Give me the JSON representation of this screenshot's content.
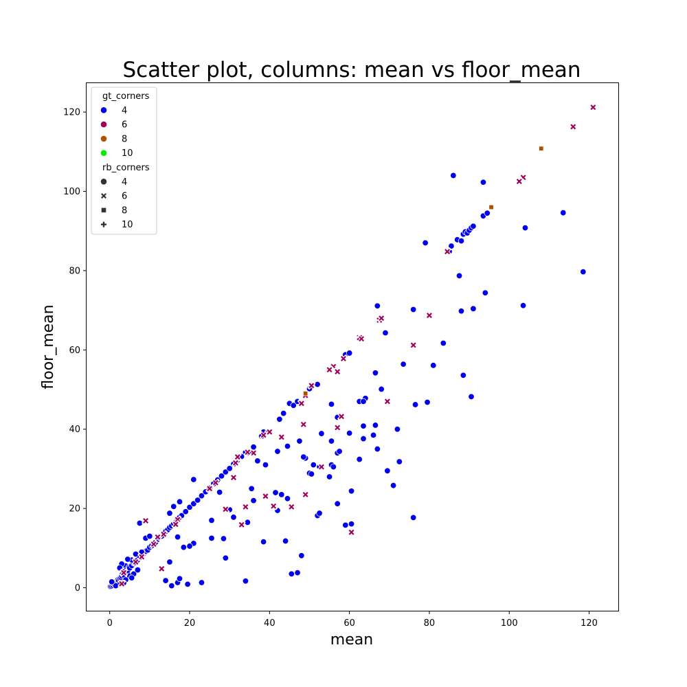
{
  "chart_data": {
    "type": "scatter",
    "title": "Scatter plot, columns: mean vs floor_mean",
    "xlabel": "mean",
    "ylabel": "floor_mean",
    "xlim": [
      -5.8,
      127.3
    ],
    "ylim": [
      -5.8,
      127.3
    ],
    "xticks": [
      0,
      20,
      40,
      60,
      80,
      100,
      120
    ],
    "yticks": [
      0,
      20,
      40,
      60,
      80,
      100,
      120
    ],
    "grid": false,
    "legend_position": "top-left",
    "hue": {
      "title": "gt_corners",
      "levels": [
        {
          "label": "4",
          "color": "#0000ee"
        },
        {
          "label": "6",
          "color": "#a0005a"
        },
        {
          "label": "8",
          "color": "#b05000"
        },
        {
          "label": "10",
          "color": "#00ee00"
        }
      ]
    },
    "style": {
      "title": "rb_corners",
      "levels": [
        {
          "label": "4",
          "marker": "circle"
        },
        {
          "label": "6",
          "marker": "x"
        },
        {
          "label": "8",
          "marker": "square"
        },
        {
          "label": "10",
          "marker": "plus"
        }
      ]
    },
    "series": [
      {
        "gt_corners": "4",
        "rb_corners": "4",
        "points": [
          [
            0.2,
            0.3
          ],
          [
            0.5,
            0.4
          ],
          [
            0.8,
            0.6
          ],
          [
            1.0,
            1.0
          ],
          [
            1.2,
            0.8
          ],
          [
            1.5,
            1.2
          ],
          [
            1.8,
            1.5
          ],
          [
            2.0,
            2.0
          ],
          [
            2.2,
            1.8
          ],
          [
            2.5,
            2.4
          ],
          [
            2.8,
            2.6
          ],
          [
            3.0,
            3.0
          ],
          [
            3.2,
            3.5
          ],
          [
            3.5,
            3.2
          ],
          [
            3.8,
            4.0
          ],
          [
            4.0,
            5.5
          ],
          [
            4.2,
            4.5
          ],
          [
            4.5,
            4.3
          ],
          [
            4.8,
            5.2
          ],
          [
            5.0,
            5.0
          ],
          [
            5.5,
            5.6
          ],
          [
            6.0,
            6.2
          ],
          [
            6.5,
            6.8
          ],
          [
            7.0,
            7.0
          ],
          [
            7.5,
            7.6
          ],
          [
            8.0,
            8.2
          ],
          [
            8.5,
            8.6
          ],
          [
            9.0,
            9.2
          ],
          [
            9.5,
            9.5
          ],
          [
            10.0,
            10.2
          ],
          [
            10.5,
            10.6
          ],
          [
            11.0,
            11.2
          ],
          [
            11.5,
            11.5
          ],
          [
            12.0,
            12.2
          ],
          [
            12.5,
            12.6
          ],
          [
            13.0,
            13.0
          ],
          [
            13.5,
            13.8
          ],
          [
            14.0,
            14.2
          ],
          [
            14.5,
            14.6
          ],
          [
            15.0,
            15.2
          ],
          [
            15.5,
            15.6
          ],
          [
            16.0,
            16.2
          ],
          [
            16.5,
            16.5
          ],
          [
            17.0,
            17.2
          ],
          [
            17.5,
            17.8
          ],
          [
            18.0,
            18.2
          ],
          [
            19.0,
            19.2
          ],
          [
            20.0,
            20.3
          ],
          [
            21.0,
            21.2
          ],
          [
            22.0,
            22.1
          ],
          [
            23.0,
            23.2
          ],
          [
            24.0,
            24.2
          ],
          [
            25.0,
            25.1
          ],
          [
            26.0,
            26.2
          ],
          [
            27.0,
            27.2
          ],
          [
            28.0,
            28.2
          ],
          [
            29.0,
            29.2
          ],
          [
            30.0,
            30.1
          ],
          [
            31.0,
            31.2
          ],
          [
            32.0,
            32.2
          ],
          [
            33.0,
            33.1
          ],
          [
            34.0,
            34.2
          ],
          [
            35.0,
            34.0
          ],
          [
            36.0,
            35.5
          ],
          [
            38.0,
            38.2
          ],
          [
            38.5,
            39.3
          ],
          [
            39.5,
            39.2
          ],
          [
            42.5,
            42.5
          ],
          [
            43.5,
            44.0
          ],
          [
            45.0,
            46.5
          ],
          [
            46.0,
            46.0
          ],
          [
            47.0,
            47.0
          ],
          [
            49.0,
            49.0
          ],
          [
            50.0,
            50.2
          ],
          [
            52.0,
            51.3
          ],
          [
            59.0,
            58.8
          ],
          [
            60.0,
            59.2
          ],
          [
            85.0,
            84.8
          ],
          [
            85.5,
            86.2
          ],
          [
            87.0,
            87.8
          ],
          [
            88.0,
            87.5
          ],
          [
            88.5,
            89.2
          ],
          [
            89.0,
            89.8
          ],
          [
            89.5,
            89.5
          ],
          [
            90.0,
            90.2
          ],
          [
            90.5,
            90.8
          ],
          [
            91.0,
            91.2
          ],
          [
            93.5,
            93.8
          ],
          [
            94.5,
            94.5
          ],
          [
            93.5,
            102.3
          ],
          [
            86.0,
            104.0
          ],
          [
            79.0,
            87.0
          ],
          [
            87.5,
            78.7
          ],
          [
            104.0,
            90.8
          ],
          [
            113.5,
            94.6
          ],
          [
            118.5,
            79.7
          ],
          [
            103.5,
            71.2
          ],
          [
            94.0,
            74.4
          ],
          [
            91.0,
            70.4
          ],
          [
            88.0,
            69.8
          ],
          [
            76.0,
            70.2
          ],
          [
            67.0,
            71.1
          ],
          [
            69.0,
            64.3
          ],
          [
            83.5,
            61.7
          ],
          [
            66.5,
            54.2
          ],
          [
            68.0,
            50.1
          ],
          [
            73.5,
            56.4
          ],
          [
            81.0,
            56.1
          ],
          [
            88.5,
            53.6
          ],
          [
            90.5,
            48.2
          ],
          [
            79.5,
            46.8
          ],
          [
            76.5,
            46.2
          ],
          [
            72.0,
            40.0
          ],
          [
            64.0,
            47.8
          ],
          [
            62.5,
            47.0
          ],
          [
            63.5,
            47.0
          ],
          [
            60.0,
            39.0
          ],
          [
            55.5,
            46.3
          ],
          [
            57.0,
            43.0
          ],
          [
            53.0,
            38.9
          ],
          [
            55.5,
            37.0
          ],
          [
            57.0,
            34.0
          ],
          [
            57.5,
            34.4
          ],
          [
            63.5,
            37.6
          ],
          [
            66.0,
            38.5
          ],
          [
            66.5,
            41.0
          ],
          [
            67.0,
            35.0
          ],
          [
            63.5,
            40.8
          ],
          [
            62.5,
            32.4
          ],
          [
            72.5,
            31.8
          ],
          [
            69.5,
            29.5
          ],
          [
            71.0,
            25.8
          ],
          [
            60.5,
            24.4
          ],
          [
            57.0,
            21.2
          ],
          [
            59.0,
            15.8
          ],
          [
            60.5,
            16.1
          ],
          [
            52.0,
            18.2
          ],
          [
            52.5,
            18.8
          ],
          [
            55.0,
            28.0
          ],
          [
            55.5,
            31.0
          ],
          [
            56.0,
            30.5
          ],
          [
            49.0,
            32.7
          ],
          [
            50.0,
            28.9
          ],
          [
            50.5,
            28.7
          ],
          [
            51.0,
            31.0
          ],
          [
            52.5,
            30.5
          ],
          [
            48.5,
            33.0
          ],
          [
            47.5,
            37.0
          ],
          [
            44.5,
            35.7
          ],
          [
            42.0,
            34.4
          ],
          [
            41.5,
            24.0
          ],
          [
            43.0,
            23.5
          ],
          [
            44.5,
            22.5
          ],
          [
            42.0,
            19.5
          ],
          [
            37.0,
            32.0
          ],
          [
            39.0,
            31.0
          ],
          [
            35.5,
            25.0
          ],
          [
            36.0,
            22.0
          ],
          [
            34.5,
            16.5
          ],
          [
            31.0,
            17.8
          ],
          [
            30.0,
            19.7
          ],
          [
            28.5,
            12.4
          ],
          [
            29.0,
            7.5
          ],
          [
            25.5,
            17.0
          ],
          [
            25.5,
            12.5
          ],
          [
            27.5,
            24.1
          ],
          [
            21.0,
            11.2
          ],
          [
            20.0,
            10.5
          ],
          [
            18.5,
            10.2
          ],
          [
            17.0,
            12.8
          ],
          [
            16.0,
            20.5
          ],
          [
            15.0,
            18.8
          ],
          [
            17.5,
            21.7
          ],
          [
            21.0,
            27.3
          ],
          [
            15.0,
            6.5
          ],
          [
            14.0,
            1.8
          ],
          [
            15.5,
            0.5
          ],
          [
            17.0,
            1.3
          ],
          [
            17.5,
            2.3
          ],
          [
            19.5,
            0.9
          ],
          [
            23.0,
            1.3
          ],
          [
            34.0,
            1.7
          ],
          [
            38.5,
            11.6
          ],
          [
            44.0,
            11.8
          ],
          [
            45.5,
            3.5
          ],
          [
            47.0,
            3.8
          ],
          [
            48.0,
            8.1
          ],
          [
            76.0,
            17.7
          ],
          [
            7.5,
            16.3
          ],
          [
            9.0,
            12.5
          ],
          [
            10.0,
            13.0
          ],
          [
            8.0,
            9.0
          ],
          [
            6.5,
            8.5
          ],
          [
            5.5,
            7.0
          ],
          [
            4.5,
            7.2
          ],
          [
            3.0,
            6.0
          ],
          [
            3.5,
            4.0
          ],
          [
            2.5,
            5.0
          ],
          [
            5.0,
            3.0
          ],
          [
            6.0,
            3.5
          ],
          [
            4.0,
            2.0
          ],
          [
            2.0,
            0.7
          ],
          [
            1.5,
            0.5
          ],
          [
            0.5,
            1.5
          ],
          [
            3.5,
            1.2
          ],
          [
            5.5,
            2.5
          ],
          [
            7.0,
            4.5
          ]
        ]
      },
      {
        "gt_corners": "6",
        "rb_corners": "6",
        "points": [
          [
            121.0,
            121.2
          ],
          [
            116.0,
            116.3
          ],
          [
            103.5,
            103.5
          ],
          [
            102.5,
            102.5
          ],
          [
            84.5,
            84.8
          ],
          [
            80.0,
            68.7
          ],
          [
            76.0,
            61.2
          ],
          [
            67.5,
            67.5
          ],
          [
            68.0,
            68.0
          ],
          [
            62.5,
            63.1
          ],
          [
            63.0,
            62.8
          ],
          [
            58.5,
            57.8
          ],
          [
            56.0,
            55.8
          ],
          [
            55.0,
            55.0
          ],
          [
            57.0,
            54.5
          ],
          [
            69.5,
            47.0
          ],
          [
            50.5,
            51.0
          ],
          [
            48.0,
            46.5
          ],
          [
            49.0,
            48.5
          ],
          [
            58.0,
            43.2
          ],
          [
            57.0,
            40.4
          ],
          [
            48.5,
            41.2
          ],
          [
            43.0,
            38.0
          ],
          [
            40.0,
            39.3
          ],
          [
            38.5,
            38.5
          ],
          [
            36.0,
            34.0
          ],
          [
            34.5,
            34.2
          ],
          [
            32.0,
            33.0
          ],
          [
            31.5,
            31.5
          ],
          [
            31.0,
            27.8
          ],
          [
            26.5,
            26.5
          ],
          [
            25.0,
            25.0
          ],
          [
            17.0,
            17.2
          ],
          [
            16.5,
            16.0
          ],
          [
            13.5,
            13.5
          ],
          [
            12.0,
            12.8
          ],
          [
            11.0,
            11.0
          ],
          [
            9.0,
            16.9
          ],
          [
            8.0,
            7.8
          ],
          [
            6.5,
            6.5
          ],
          [
            3.5,
            3.8
          ],
          [
            3.0,
            1.0
          ],
          [
            13.0,
            4.8
          ],
          [
            29.0,
            19.8
          ],
          [
            34.0,
            20.4
          ],
          [
            33.0,
            15.9
          ],
          [
            39.0,
            23.1
          ],
          [
            41.0,
            20.6
          ],
          [
            45.5,
            20.4
          ],
          [
            49.0,
            23.5
          ],
          [
            53.0,
            30.5
          ],
          [
            60.5,
            14.0
          ]
        ]
      },
      {
        "gt_corners": "8",
        "rb_corners": "8",
        "points": [
          [
            108.0,
            110.8
          ],
          [
            95.5,
            96.0
          ],
          [
            49.0,
            49.0
          ]
        ]
      }
    ]
  }
}
